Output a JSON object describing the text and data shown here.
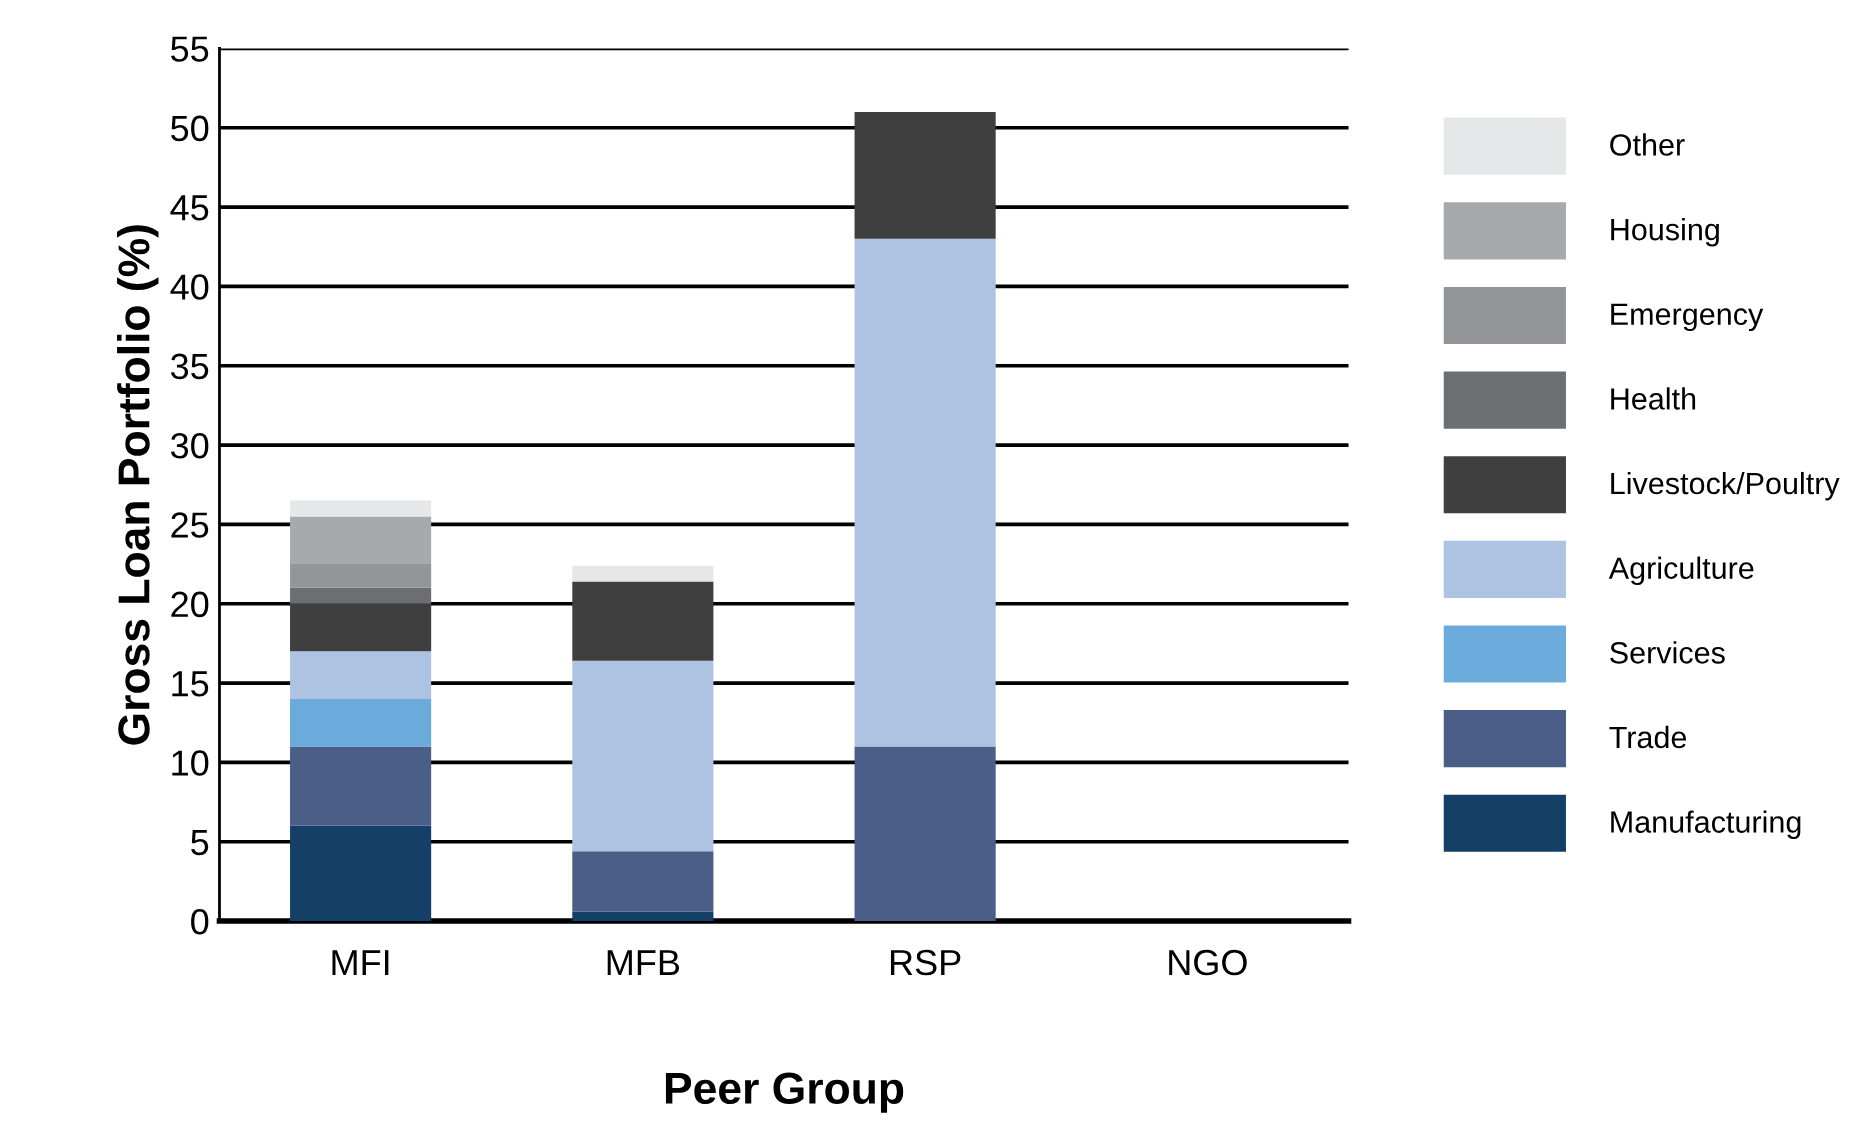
{
  "chart_data": {
    "type": "bar",
    "stacked": true,
    "xlabel": "Peer Group",
    "ylabel": "Gross Loan Portfolio (%)",
    "categories": [
      "MFI",
      "MFB",
      "RSP",
      "NGO"
    ],
    "series": [
      {
        "name": "Manufacturing",
        "color": "#143f66",
        "values": [
          6,
          0.6,
          0,
          0
        ]
      },
      {
        "name": "Trade",
        "color": "#4a5e88",
        "values": [
          5,
          3.8,
          11,
          0
        ]
      },
      {
        "name": "Services",
        "color": "#6aabdb",
        "values": [
          3,
          0,
          0,
          0
        ]
      },
      {
        "name": "Agriculture",
        "color": "#adc3e2",
        "values": [
          3,
          12,
          32,
          0
        ]
      },
      {
        "name": "Livestock/Poultry",
        "color": "#3f3f3f",
        "values": [
          3,
          5,
          8,
          0
        ]
      },
      {
        "name": "Health",
        "color": "#6d6e71",
        "values": [
          1,
          0,
          0,
          0
        ]
      },
      {
        "name": "Emergency",
        "color": "#939598",
        "values": [
          1.5,
          0,
          0,
          0
        ]
      },
      {
        "name": "Housing",
        "color": "#a7a9ac",
        "values": [
          3,
          0,
          0,
          0
        ]
      },
      {
        "name": "Other",
        "color": "#e6e7e8",
        "values": [
          1,
          1,
          0,
          0
        ]
      }
    ],
    "ylim": [
      0,
      55
    ],
    "yticks": [
      0,
      5,
      10,
      15,
      20,
      25,
      30,
      35,
      40,
      45,
      50,
      55
    ],
    "grid": "y",
    "legend": "right"
  }
}
